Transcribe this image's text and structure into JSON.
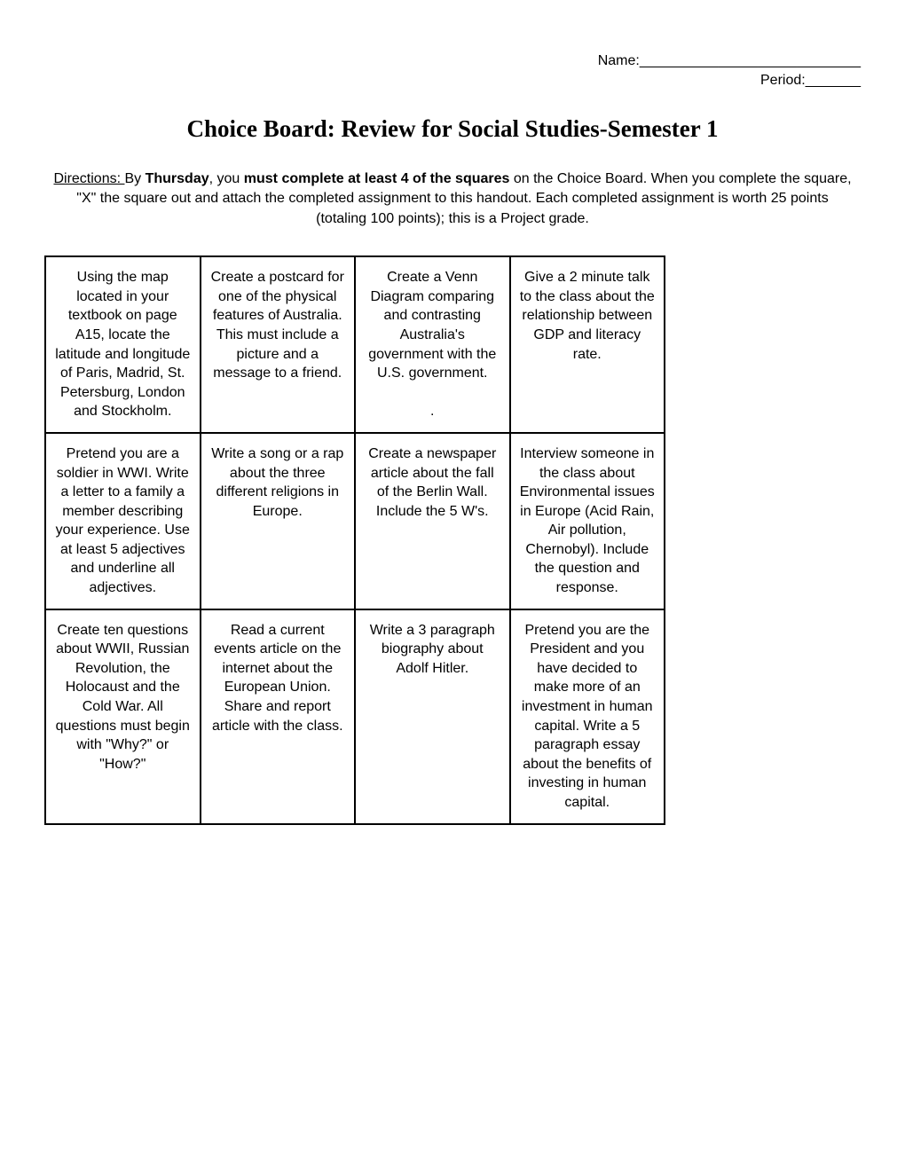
{
  "header": {
    "name_label": "Name:",
    "name_line": "____________________________",
    "period_label": "Period:",
    "period_line": "_______"
  },
  "title": "Choice Board: Review for Social Studies-Semester 1",
  "directions": {
    "label": "Directions: ",
    "prefix": "By ",
    "day": "Thursday",
    "mid1": ", you ",
    "bold2": "must complete at least 4 of the squares",
    "rest": " on the Choice Board. When you complete the square, \"X\" the square out and attach the completed assignment to this handout. Each completed assignment is worth 25 points (totaling 100 points); this is a Project grade."
  },
  "grid": {
    "rows": [
      [
        "Using the map located in your textbook on page A15, locate the latitude and longitude of Paris, Madrid, St. Petersburg, London and Stockholm.",
        "Create a postcard for one of the physical features of Australia. This must include a picture and a message to a friend.",
        "Create a Venn Diagram comparing and contrasting Australia's government with the U.S. government.\n\n.",
        "Give a 2 minute talk\nto the class about the relationship between GDP and literacy rate."
      ],
      [
        "Pretend you are a soldier in WWI. Write a letter to a family a member describing your experience. Use at least 5 adjectives and underline all adjectives.",
        "Write a song or a rap about the three different religions in Europe.",
        "Create a newspaper article about the fall of the Berlin Wall. Include the 5 W's.",
        "Interview someone in the class about Environmental issues in Europe (Acid Rain, Air pollution, Chernobyl). Include the question and response."
      ],
      [
        "Create ten questions about WWII, Russian Revolution, the Holocaust and the Cold War. All questions must begin with \"Why?\" or \"How?\"",
        "Read a current events article on the internet about the European Union. Share and report article with the class.",
        "Write a 3 paragraph biography about Adolf Hitler.",
        "Pretend you are the President and you have decided to make more of an investment in human capital. Write a 5 paragraph essay about the benefits of investing in human capital."
      ]
    ]
  }
}
